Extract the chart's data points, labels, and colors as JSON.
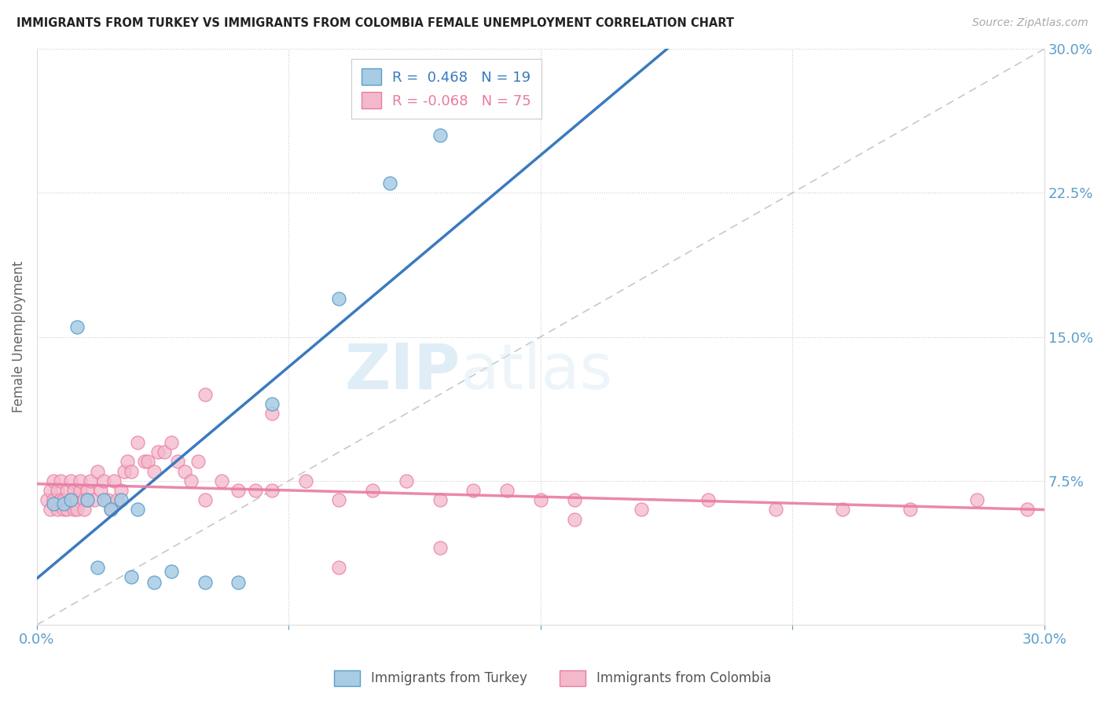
{
  "title": "IMMIGRANTS FROM TURKEY VS IMMIGRANTS FROM COLOMBIA FEMALE UNEMPLOYMENT CORRELATION CHART",
  "source": "Source: ZipAtlas.com",
  "ylabel": "Female Unemployment",
  "xlim": [
    0.0,
    0.3
  ],
  "ylim": [
    0.0,
    0.3
  ],
  "turkey_color": "#a8cce4",
  "turkey_edge": "#5b9ec9",
  "colombia_color": "#f4b8cb",
  "colombia_edge": "#e87ca0",
  "turkey_R": 0.468,
  "turkey_N": 19,
  "colombia_R": -0.068,
  "colombia_N": 75,
  "watermark_zip": "ZIP",
  "watermark_atlas": "atlas",
  "background_color": "#ffffff",
  "grid_color": "#cccccc",
  "axis_label_color": "#5b9eca",
  "turkey_line_color": "#3a7abf",
  "colombia_line_color": "#e87ca0",
  "ref_line_color": "#bbbbbb",
  "turkey_scatter_x": [
    0.005,
    0.008,
    0.01,
    0.012,
    0.015,
    0.018,
    0.02,
    0.022,
    0.025,
    0.028,
    0.03,
    0.035,
    0.04,
    0.05,
    0.06,
    0.07,
    0.09,
    0.105,
    0.12
  ],
  "turkey_scatter_y": [
    0.063,
    0.063,
    0.065,
    0.155,
    0.065,
    0.03,
    0.065,
    0.06,
    0.065,
    0.025,
    0.06,
    0.022,
    0.028,
    0.022,
    0.022,
    0.115,
    0.17,
    0.23,
    0.255
  ],
  "colombia_scatter_x": [
    0.003,
    0.004,
    0.004,
    0.005,
    0.005,
    0.006,
    0.006,
    0.007,
    0.007,
    0.008,
    0.008,
    0.009,
    0.009,
    0.01,
    0.01,
    0.011,
    0.011,
    0.012,
    0.012,
    0.013,
    0.013,
    0.014,
    0.014,
    0.015,
    0.015,
    0.016,
    0.017,
    0.018,
    0.019,
    0.02,
    0.021,
    0.022,
    0.023,
    0.024,
    0.025,
    0.026,
    0.027,
    0.028,
    0.03,
    0.032,
    0.033,
    0.035,
    0.036,
    0.038,
    0.04,
    0.042,
    0.044,
    0.046,
    0.048,
    0.05,
    0.055,
    0.06,
    0.065,
    0.07,
    0.08,
    0.09,
    0.1,
    0.11,
    0.12,
    0.13,
    0.14,
    0.15,
    0.16,
    0.18,
    0.2,
    0.22,
    0.24,
    0.26,
    0.28,
    0.295,
    0.05,
    0.07,
    0.09,
    0.12,
    0.16
  ],
  "colombia_scatter_y": [
    0.065,
    0.06,
    0.07,
    0.065,
    0.075,
    0.06,
    0.07,
    0.065,
    0.075,
    0.06,
    0.065,
    0.07,
    0.06,
    0.065,
    0.075,
    0.06,
    0.07,
    0.065,
    0.06,
    0.07,
    0.075,
    0.065,
    0.06,
    0.07,
    0.065,
    0.075,
    0.065,
    0.08,
    0.07,
    0.075,
    0.065,
    0.06,
    0.075,
    0.065,
    0.07,
    0.08,
    0.085,
    0.08,
    0.095,
    0.085,
    0.085,
    0.08,
    0.09,
    0.09,
    0.095,
    0.085,
    0.08,
    0.075,
    0.085,
    0.065,
    0.075,
    0.07,
    0.07,
    0.07,
    0.075,
    0.065,
    0.07,
    0.075,
    0.065,
    0.07,
    0.07,
    0.065,
    0.065,
    0.06,
    0.065,
    0.06,
    0.06,
    0.06,
    0.065,
    0.06,
    0.12,
    0.11,
    0.03,
    0.04,
    0.055
  ]
}
